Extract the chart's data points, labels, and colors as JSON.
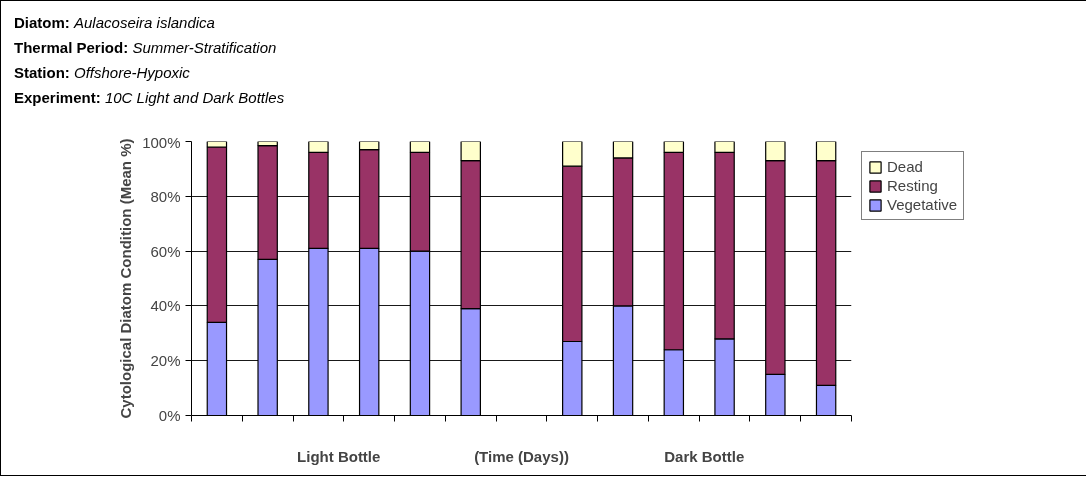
{
  "chart_data": {
    "type": "bar",
    "stacked": true,
    "title": "Diatom: Aulacoseira islandica\nThermal Period: Summer-Stratification\nStation: Offshore-Hypoxic\nExperiment: 10C Light and Dark Bottles",
    "ylabel": "Cytological Diatom Condition (Mean %)",
    "xlabel": "(Time (Days))",
    "annotations": [
      "Light Bottle",
      "Dark Bottle"
    ],
    "categories": [
      null,
      null,
      null,
      null,
      null,
      null,
      null,
      null,
      null,
      null,
      null,
      null,
      null
    ],
    "series": [
      {
        "name": "Vegetative",
        "color": "#9999ff",
        "values": [
          34,
          57,
          61,
          61,
          60,
          39,
          null,
          27,
          40,
          24,
          28,
          15,
          11
        ]
      },
      {
        "name": "Resting",
        "color": "#993366",
        "values": [
          64,
          41.5,
          35,
          36,
          36,
          54,
          null,
          64,
          54,
          72,
          68,
          78,
          82
        ]
      },
      {
        "name": "Dead",
        "color": "#ffffcc",
        "values": [
          2,
          1.5,
          4,
          3,
          4,
          7,
          null,
          9,
          6,
          4,
          4,
          7,
          7
        ]
      }
    ],
    "ylim": [
      0,
      100
    ],
    "yticks": [
      {
        "value": 0,
        "label": "0%"
      },
      {
        "value": 20,
        "label": "20%"
      },
      {
        "value": 40,
        "label": "40%"
      },
      {
        "value": 60,
        "label": "60%"
      },
      {
        "value": 80,
        "label": "80%"
      },
      {
        "value": 100,
        "label": "100%"
      }
    ],
    "grid": "y",
    "legend": "top right"
  }
}
